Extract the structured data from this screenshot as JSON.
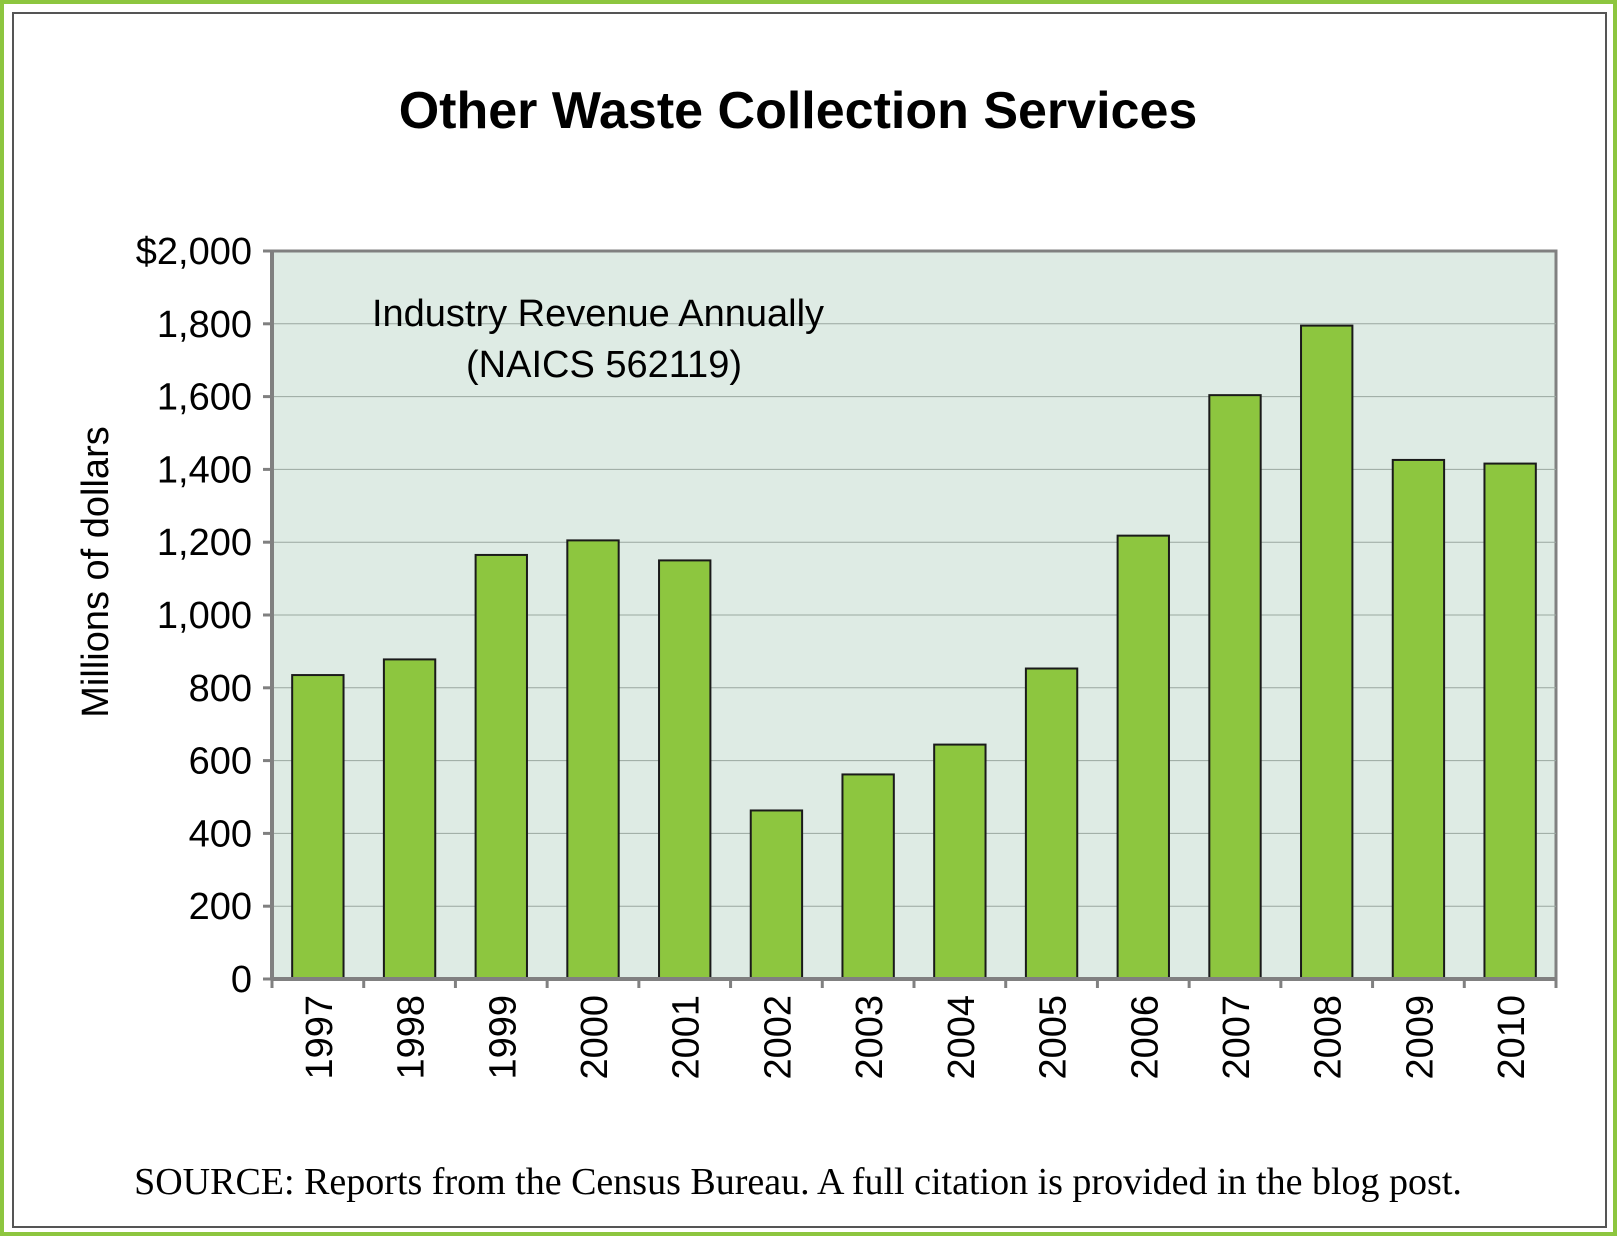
{
  "chart_data": {
    "type": "bar",
    "title": "Other Waste Collection Services",
    "annotation_lines": [
      "Industry Revenue Annually",
      "(NAICS 562119)"
    ],
    "ylabel": "Millions of dollars",
    "xlabel": "",
    "ylim": [
      0,
      2000
    ],
    "yticks": [
      0,
      200,
      400,
      600,
      800,
      1000,
      1200,
      1400,
      1600,
      1800,
      2000
    ],
    "ytick_labels": [
      "0",
      "200",
      "400",
      "600",
      "800",
      "1,000",
      "1,200",
      "1,400",
      "1,600",
      "1,800",
      "$2,000"
    ],
    "categories": [
      "1997",
      "1998",
      "1999",
      "2000",
      "2001",
      "2002",
      "2003",
      "2004",
      "2005",
      "2006",
      "2007",
      "2008",
      "2009",
      "2010"
    ],
    "values": [
      835,
      878,
      1165,
      1205,
      1150,
      463,
      562,
      644,
      853,
      1218,
      1604,
      1795,
      1426,
      1416
    ],
    "grid": true,
    "colors": {
      "bar": "#8dc63f",
      "bar_stroke": "#1a1a1a",
      "plot_bg": "#deebe4",
      "grid": "#9aa8a0",
      "axis": "#808080",
      "frame": "#8dc63f"
    }
  },
  "source": "SOURCE: Reports from the Census Bureau. A full citation is provided in the blog post."
}
